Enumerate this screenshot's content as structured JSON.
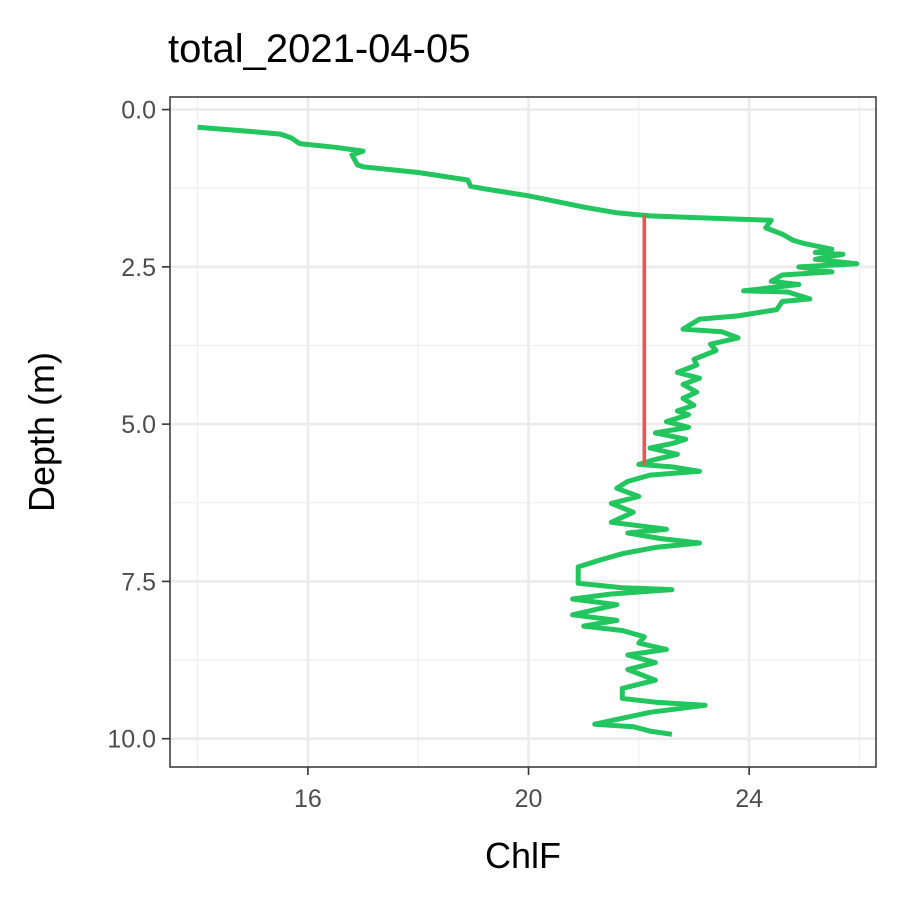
{
  "chart_data": {
    "type": "line",
    "title": "total_2021-04-05",
    "xlabel": "ChlF",
    "ylabel": "Depth (m)",
    "xlim": [
      13.5,
      26.3
    ],
    "ylim": [
      10.45,
      -0.2
    ],
    "y_reversed": true,
    "xticks": [
      16,
      20,
      24
    ],
    "xtick_labels": [
      "16",
      "20",
      "24"
    ],
    "yticks": [
      0,
      2.5,
      5,
      7.5,
      10
    ],
    "ytick_labels": [
      "0.0",
      "2.5",
      "5.0",
      "7.5",
      "10.0"
    ],
    "grid": true,
    "legend": "none",
    "series": [
      {
        "color": "#22C55E",
        "points": [
          [
            14.0,
            0.28
          ],
          [
            15.0,
            0.35
          ],
          [
            15.5,
            0.39
          ],
          [
            15.7,
            0.45
          ],
          [
            15.85,
            0.54
          ],
          [
            16.5,
            0.6
          ],
          [
            17.0,
            0.66
          ],
          [
            16.8,
            0.72
          ],
          [
            16.9,
            0.88
          ],
          [
            17.0,
            0.91
          ],
          [
            18.0,
            1.0
          ],
          [
            18.9,
            1.12
          ],
          [
            18.95,
            1.22
          ],
          [
            19.2,
            1.26
          ],
          [
            20.0,
            1.37
          ],
          [
            21.0,
            1.55
          ],
          [
            21.6,
            1.64
          ],
          [
            22.2,
            1.69
          ],
          [
            23.4,
            1.73
          ],
          [
            24.4,
            1.76
          ],
          [
            24.3,
            1.88
          ],
          [
            24.6,
            1.98
          ],
          [
            24.8,
            2.08
          ],
          [
            25.0,
            2.13
          ],
          [
            25.5,
            2.22
          ],
          [
            25.2,
            2.27
          ],
          [
            25.7,
            2.3
          ],
          [
            25.2,
            2.38
          ],
          [
            25.95,
            2.45
          ],
          [
            24.9,
            2.5
          ],
          [
            25.5,
            2.58
          ],
          [
            24.6,
            2.63
          ],
          [
            24.4,
            2.73
          ],
          [
            24.9,
            2.78
          ],
          [
            23.9,
            2.88
          ],
          [
            24.7,
            2.9
          ],
          [
            25.1,
            3.01
          ],
          [
            24.6,
            3.05
          ],
          [
            24.5,
            3.18
          ],
          [
            23.8,
            3.28
          ],
          [
            23.1,
            3.33
          ],
          [
            22.8,
            3.49
          ],
          [
            23.5,
            3.53
          ],
          [
            23.8,
            3.63
          ],
          [
            23.3,
            3.73
          ],
          [
            23.4,
            3.83
          ],
          [
            23.0,
            3.97
          ],
          [
            23.05,
            4.06
          ],
          [
            22.7,
            4.18
          ],
          [
            23.1,
            4.27
          ],
          [
            22.8,
            4.37
          ],
          [
            23.05,
            4.49
          ],
          [
            22.8,
            4.59
          ],
          [
            23.0,
            4.7
          ],
          [
            22.7,
            4.79
          ],
          [
            22.9,
            4.85
          ],
          [
            22.5,
            4.96
          ],
          [
            22.9,
            5.05
          ],
          [
            22.3,
            5.14
          ],
          [
            22.85,
            5.24
          ],
          [
            22.6,
            5.31
          ],
          [
            22.2,
            5.38
          ],
          [
            22.7,
            5.48
          ],
          [
            22.3,
            5.56
          ],
          [
            22.0,
            5.64
          ],
          [
            22.6,
            5.68
          ],
          [
            23.1,
            5.75
          ],
          [
            22.2,
            5.81
          ],
          [
            21.8,
            5.91
          ],
          [
            21.6,
            6.02
          ],
          [
            22.0,
            6.15
          ],
          [
            21.5,
            6.26
          ],
          [
            21.9,
            6.4
          ],
          [
            21.5,
            6.56
          ],
          [
            22.5,
            6.67
          ],
          [
            21.8,
            6.73
          ],
          [
            22.4,
            6.82
          ],
          [
            23.1,
            6.89
          ],
          [
            22.3,
            6.96
          ],
          [
            21.7,
            7.06
          ],
          [
            21.3,
            7.16
          ],
          [
            20.9,
            7.27
          ],
          [
            20.9,
            7.53
          ],
          [
            21.7,
            7.6
          ],
          [
            22.6,
            7.63
          ],
          [
            21.5,
            7.7
          ],
          [
            20.8,
            7.78
          ],
          [
            21.6,
            7.87
          ],
          [
            20.8,
            8.03
          ],
          [
            21.6,
            8.12
          ],
          [
            21.0,
            8.21
          ],
          [
            21.7,
            8.28
          ],
          [
            22.1,
            8.38
          ],
          [
            22.0,
            8.48
          ],
          [
            22.5,
            8.58
          ],
          [
            21.8,
            8.67
          ],
          [
            22.3,
            8.79
          ],
          [
            21.8,
            8.9
          ],
          [
            22.3,
            9.07
          ],
          [
            21.7,
            9.2
          ],
          [
            21.7,
            9.36
          ],
          [
            22.3,
            9.42
          ],
          [
            23.2,
            9.47
          ],
          [
            22.2,
            9.58
          ],
          [
            21.2,
            9.77
          ],
          [
            21.9,
            9.81
          ],
          [
            22.2,
            9.88
          ],
          [
            22.6,
            9.93
          ]
        ]
      },
      {
        "color": "#EF5350",
        "points": [
          [
            22.1,
            1.68
          ],
          [
            22.1,
            5.65
          ]
        ]
      }
    ]
  }
}
